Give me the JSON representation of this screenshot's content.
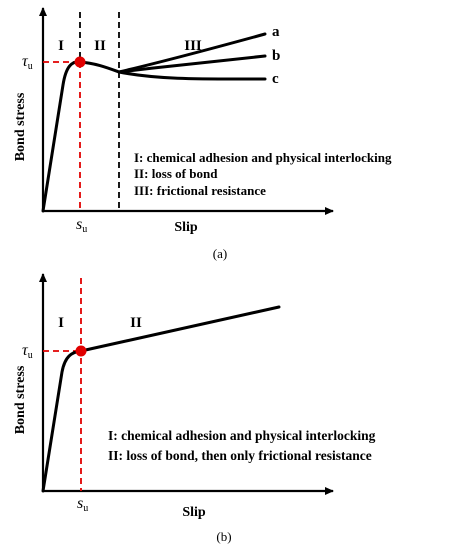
{
  "panel_a": {
    "ylabel": "Bond stress",
    "xlabel": "Slip",
    "tau_symbol": "τ",
    "tau_sub": "u",
    "s_symbol": "s",
    "s_sub": "u",
    "region_1": "I",
    "region_2": "II",
    "region_3": "III",
    "curve_a": "a",
    "curve_b": "b",
    "curve_c": "c",
    "legend_1": "I: chemical adhesion and physical interlocking",
    "legend_2": "II: loss of bond",
    "legend_3": "III: frictional resistance",
    "caption": "(a)",
    "colors": {
      "marker": "#e10000",
      "dashed": "#e10000",
      "curve": "#000000"
    }
  },
  "panel_b": {
    "ylabel": "Bond stress",
    "xlabel": "Slip",
    "tau_symbol": "τ",
    "tau_sub": "u",
    "s_symbol": "s",
    "s_sub": "u",
    "region_1": "I",
    "region_2": "II",
    "legend_1": "I: chemical adhesion and physical interlocking",
    "legend_2": "II: loss of bond, then only frictional resistance",
    "caption": "(b)",
    "colors": {
      "marker": "#e10000",
      "dashed": "#e10000",
      "curve": "#000000"
    }
  }
}
